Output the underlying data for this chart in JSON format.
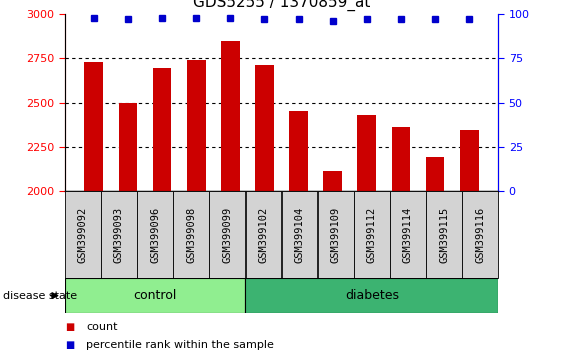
{
  "title": "GDS5255 / 1370859_at",
  "categories": [
    "GSM399092",
    "GSM399093",
    "GSM399096",
    "GSM399098",
    "GSM399099",
    "GSM399102",
    "GSM399104",
    "GSM399109",
    "GSM399112",
    "GSM399114",
    "GSM399115",
    "GSM399116"
  ],
  "bar_values": [
    2730,
    2500,
    2695,
    2740,
    2850,
    2710,
    2455,
    2115,
    2430,
    2360,
    2195,
    2345
  ],
  "percentile_values": [
    98,
    97,
    98,
    98,
    98,
    97,
    97,
    96,
    97,
    97,
    97,
    97
  ],
  "bar_color": "#cc0000",
  "percentile_color": "#0000cc",
  "ylim_left": [
    2000,
    3000
  ],
  "ylim_right": [
    0,
    100
  ],
  "yticks_left": [
    2000,
    2250,
    2500,
    2750,
    3000
  ],
  "yticks_right": [
    0,
    25,
    50,
    75,
    100
  ],
  "grid_lines": [
    2250,
    2500,
    2750
  ],
  "n_control": 5,
  "n_diabetes": 7,
  "control_label": "control",
  "diabetes_label": "diabetes",
  "disease_state_label": "disease state",
  "legend_count_label": "count",
  "legend_percentile_label": "percentile rank within the sample",
  "group_bg_control": "#90EE90",
  "group_bg_diabetes": "#3CB371",
  "tick_label_bg": "#d3d3d3",
  "title_fontsize": 11,
  "tick_fontsize": 7.5
}
